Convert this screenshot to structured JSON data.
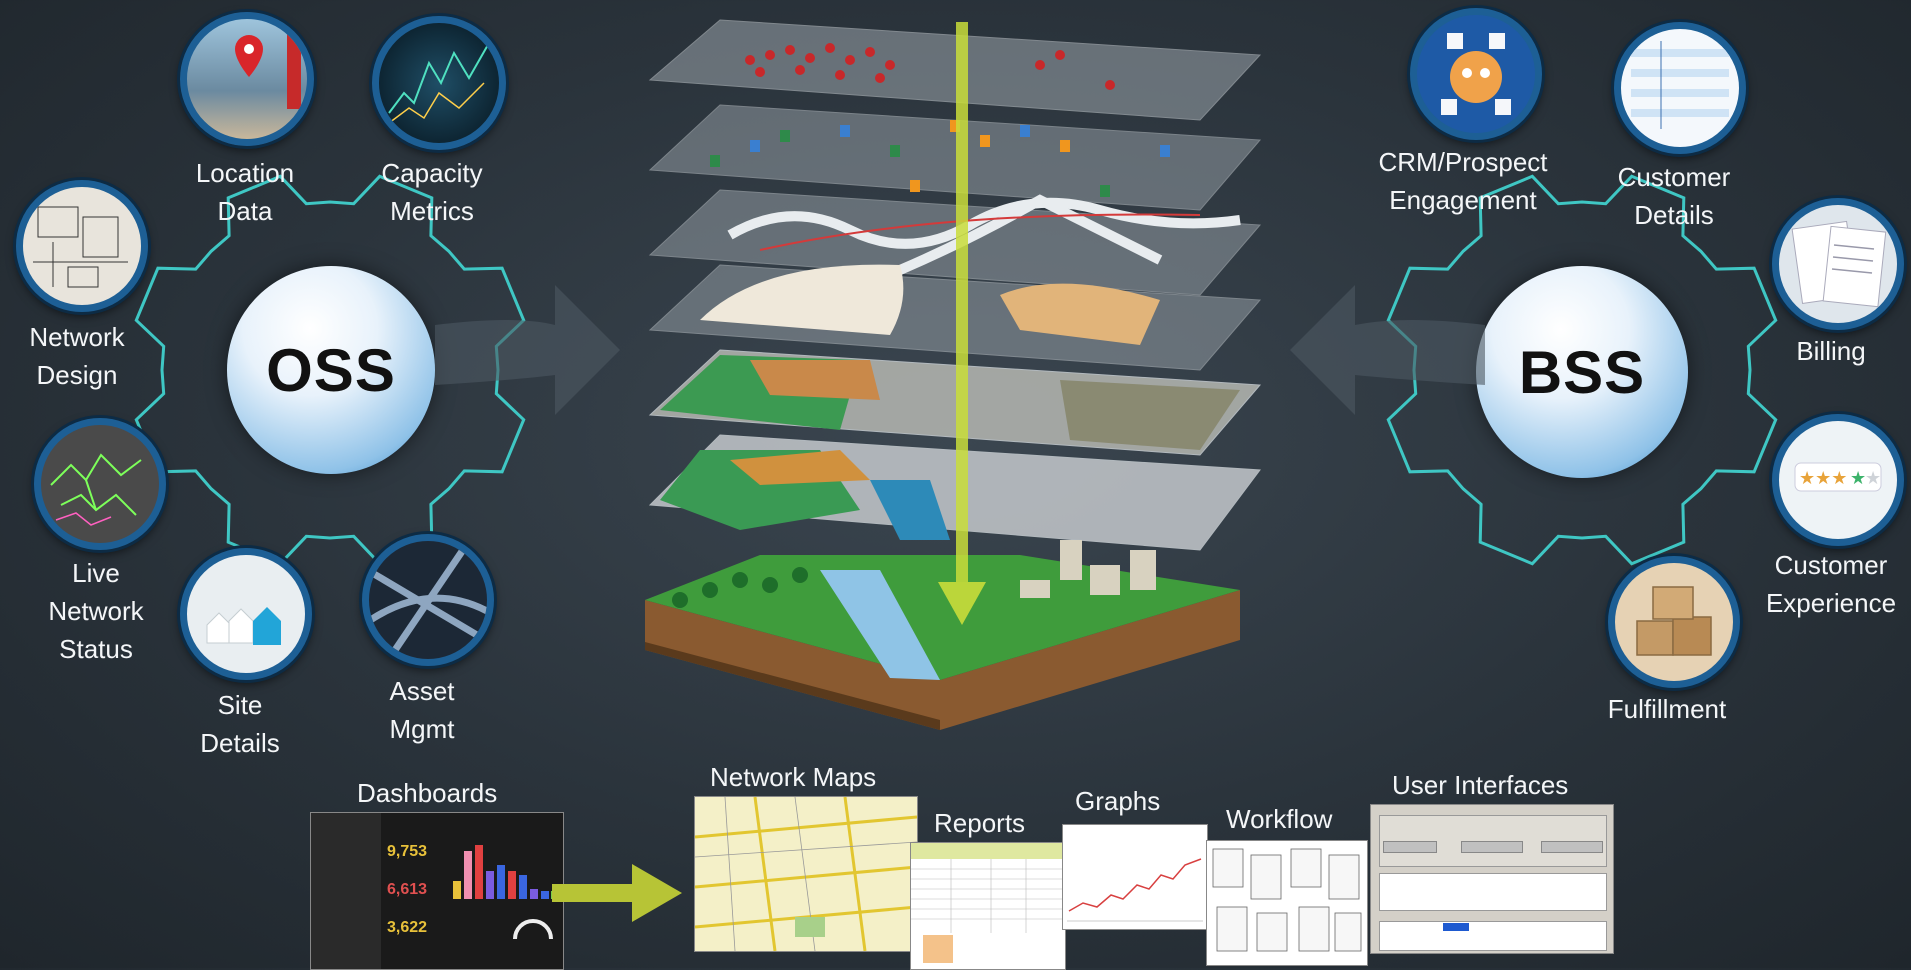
{
  "oss": {
    "title": "OSS",
    "items": [
      {
        "label_lines": [
          "Location",
          "Data"
        ],
        "icon": "location-pin-icon"
      },
      {
        "label_lines": [
          "Capacity",
          "Metrics"
        ],
        "icon": "metrics-chart-icon"
      },
      {
        "label_lines": [
          "Network",
          "Design"
        ],
        "icon": "blueprint-icon"
      },
      {
        "label_lines": [
          "Live",
          "Network",
          "Status"
        ],
        "icon": "network-map-icon"
      },
      {
        "label_lines": [
          "Site",
          "Details"
        ],
        "icon": "houses-icon"
      },
      {
        "label_lines": [
          "Asset",
          "Mgmt"
        ],
        "icon": "highway-icon"
      }
    ]
  },
  "bss": {
    "title": "BSS",
    "items": [
      {
        "label_lines": [
          "CRM/Prospect",
          "Engagement"
        ],
        "icon": "crm-apps-icon"
      },
      {
        "label_lines": [
          "Customer",
          "Details"
        ],
        "icon": "customer-table-icon"
      },
      {
        "label_lines": [
          "Billing"
        ],
        "icon": "billing-documents-icon"
      },
      {
        "label_lines": [
          "Customer",
          "Experience"
        ],
        "icon": "rating-stars-icon"
      },
      {
        "label_lines": [
          "Fulfillment"
        ],
        "icon": "boxes-icon"
      }
    ]
  },
  "outputs": {
    "dashboards": "Dashboards",
    "network_maps": "Network Maps",
    "reports": "Reports",
    "graphs": "Graphs",
    "workflow": "Workflow",
    "user_interfaces": "User Interfaces",
    "dashboard_values": [
      "9,753",
      "6,613",
      "3,622"
    ]
  },
  "colors": {
    "gear_outline": "#3fc7c4",
    "core_blue": "#2d82c2",
    "beam": "#c9dd3a",
    "arrow": "#b7c436"
  }
}
